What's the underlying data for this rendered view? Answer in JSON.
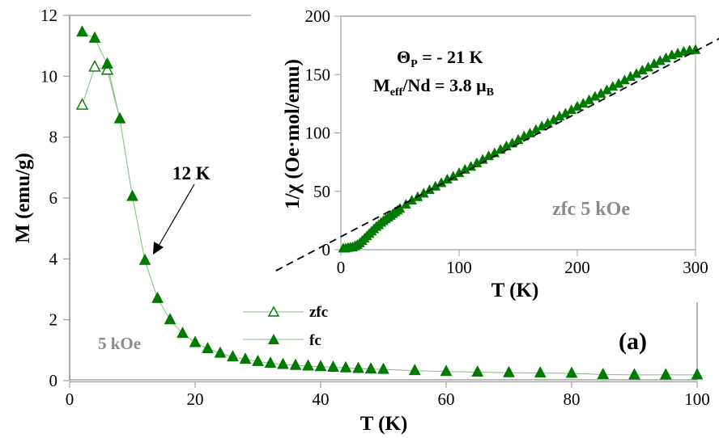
{
  "chart_data": [
    {
      "id": "main",
      "type": "line",
      "title": "",
      "xlabel": "T (K)",
      "ylabel": "M (emu/g)",
      "xlim": [
        0,
        100
      ],
      "ylim": [
        0,
        12
      ],
      "xticks": [
        0,
        20,
        40,
        60,
        80,
        100
      ],
      "yticks": [
        0,
        2,
        4,
        6,
        8,
        10,
        12
      ],
      "grid": false,
      "legend": {
        "placement": "bottom-center",
        "entries": [
          "zfc",
          "fc"
        ]
      },
      "annotations": [
        {
          "text": "12 K",
          "kind": "arrow",
          "points_to": {
            "x": 12,
            "y": 4.0
          }
        },
        {
          "text": "5 kOe",
          "kind": "label"
        },
        {
          "text": "(a)",
          "kind": "panel-label"
        }
      ],
      "series": [
        {
          "name": "zfc",
          "marker": "open-triangle",
          "color": "#007a00",
          "x": [
            2,
            4,
            6
          ],
          "y": [
            9.05,
            10.3,
            10.2
          ]
        },
        {
          "name": "fc",
          "marker": "filled-triangle",
          "color": "#007a00",
          "x": [
            2,
            4,
            6,
            8,
            10,
            12,
            14,
            16,
            18,
            20,
            22,
            24,
            26,
            28,
            30,
            32,
            34,
            36,
            38,
            40,
            42,
            44,
            46,
            48,
            50,
            55,
            60,
            65,
            70,
            75,
            80,
            85,
            90,
            95,
            100
          ],
          "y": [
            11.45,
            11.25,
            10.4,
            8.6,
            6.05,
            3.95,
            2.7,
            2.0,
            1.55,
            1.25,
            1.05,
            0.9,
            0.78,
            0.7,
            0.63,
            0.57,
            0.53,
            0.5,
            0.48,
            0.46,
            0.44,
            0.42,
            0.4,
            0.38,
            0.37,
            0.33,
            0.3,
            0.28,
            0.26,
            0.25,
            0.24,
            0.2,
            0.19,
            0.19,
            0.19
          ]
        },
        {
          "name": "zfc-line",
          "x": [
            2,
            4,
            6,
            8
          ],
          "y": [
            9.05,
            10.3,
            10.2,
            8.6
          ]
        }
      ]
    },
    {
      "id": "inset",
      "type": "scatter",
      "title": "",
      "xlabel": "T (K)",
      "ylabel": "1/χ (Oe·mol/emu)",
      "xlim": [
        0,
        300
      ],
      "ylim": [
        0,
        200
      ],
      "xticks": [
        0,
        100,
        200,
        300
      ],
      "yticks": [
        0,
        50,
        100,
        150,
        200
      ],
      "grid": false,
      "annotations": [
        {
          "text_main": "Θ",
          "sub": "P",
          "rest": " = - 21 K"
        },
        {
          "text_main": "M",
          "sub": "eff",
          "rest": "/Nd = 3.8 μ",
          "sub2": "B"
        },
        {
          "text": "zfc 5 kOe",
          "kind": "label"
        }
      ],
      "fit": {
        "name": "Curie-Weiss fit",
        "style": "dashed",
        "theta_p": -21,
        "slope": 0.53,
        "x_range": [
          -55,
          330
        ]
      },
      "series": [
        {
          "name": "zfc 5 kOe",
          "marker": "filled-triangle",
          "color": "#007a00",
          "x": [
            2,
            4,
            6,
            8,
            10,
            12,
            14,
            16,
            18,
            20,
            22,
            24,
            26,
            28,
            30,
            32,
            34,
            36,
            38,
            40,
            42,
            44,
            46,
            48,
            50,
            55,
            60,
            65,
            70,
            75,
            80,
            85,
            90,
            95,
            100,
            105,
            110,
            115,
            120,
            125,
            130,
            135,
            140,
            145,
            150,
            155,
            160,
            165,
            170,
            175,
            180,
            185,
            190,
            195,
            200,
            205,
            210,
            215,
            220,
            225,
            230,
            235,
            240,
            245,
            250,
            255,
            260,
            265,
            270,
            275,
            280,
            285,
            290,
            295,
            300
          ],
          "y": [
            1,
            1,
            1.5,
            1.8,
            2,
            3,
            4,
            5.5,
            7.5,
            9.5,
            11.5,
            13.5,
            15.5,
            17.5,
            19.5,
            21,
            23,
            24.5,
            26,
            27.5,
            29,
            30.5,
            32,
            33.5,
            35,
            38.5,
            42,
            45,
            48,
            51,
            54,
            57,
            60,
            62.5,
            65.5,
            68.5,
            71,
            74,
            77,
            80,
            82.5,
            85.5,
            88.5,
            91,
            94,
            97,
            99.5,
            102.5,
            105.5,
            108,
            111,
            114,
            116.5,
            119.5,
            122.5,
            125,
            128,
            131,
            133.5,
            136.5,
            139.5,
            142,
            145,
            148,
            150.5,
            153.5,
            156,
            159,
            161.5,
            164,
            166.5,
            168,
            169.5,
            170.5,
            171
          ]
        }
      ]
    }
  ]
}
